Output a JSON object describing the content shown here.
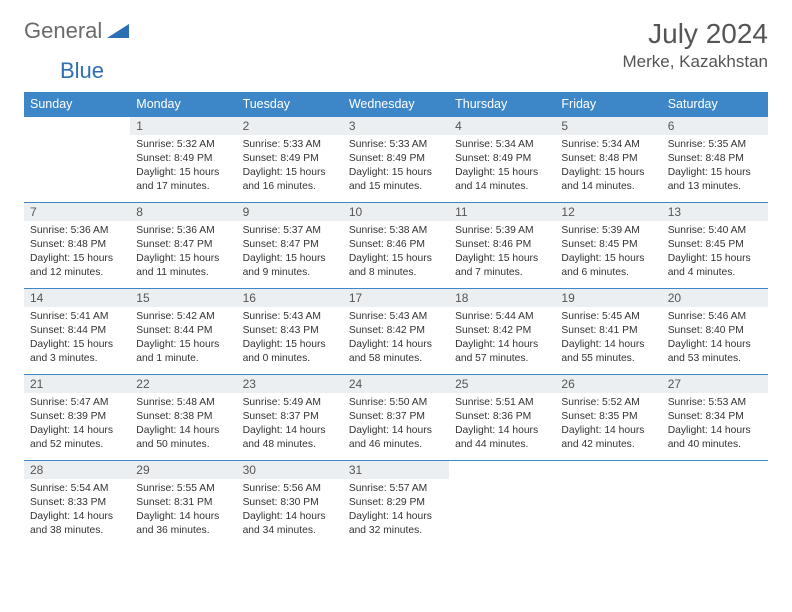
{
  "logo": {
    "text1": "General",
    "text2": "Blue"
  },
  "title": "July 2024",
  "location": "Merke, Kazakhstan",
  "colors": {
    "header_bg": "#3d87c9",
    "header_text": "#ffffff",
    "daynum_bg": "#eceff1",
    "border": "#3d87c9",
    "logo_gray": "#6a6a6a",
    "logo_blue": "#2d6fb4"
  },
  "weekdays": [
    "Sunday",
    "Monday",
    "Tuesday",
    "Wednesday",
    "Thursday",
    "Friday",
    "Saturday"
  ],
  "weeks": [
    [
      null,
      {
        "n": "1",
        "sr": "Sunrise: 5:32 AM",
        "ss": "Sunset: 8:49 PM",
        "dl": "Daylight: 15 hours and 17 minutes."
      },
      {
        "n": "2",
        "sr": "Sunrise: 5:33 AM",
        "ss": "Sunset: 8:49 PM",
        "dl": "Daylight: 15 hours and 16 minutes."
      },
      {
        "n": "3",
        "sr": "Sunrise: 5:33 AM",
        "ss": "Sunset: 8:49 PM",
        "dl": "Daylight: 15 hours and 15 minutes."
      },
      {
        "n": "4",
        "sr": "Sunrise: 5:34 AM",
        "ss": "Sunset: 8:49 PM",
        "dl": "Daylight: 15 hours and 14 minutes."
      },
      {
        "n": "5",
        "sr": "Sunrise: 5:34 AM",
        "ss": "Sunset: 8:48 PM",
        "dl": "Daylight: 15 hours and 14 minutes."
      },
      {
        "n": "6",
        "sr": "Sunrise: 5:35 AM",
        "ss": "Sunset: 8:48 PM",
        "dl": "Daylight: 15 hours and 13 minutes."
      }
    ],
    [
      {
        "n": "7",
        "sr": "Sunrise: 5:36 AM",
        "ss": "Sunset: 8:48 PM",
        "dl": "Daylight: 15 hours and 12 minutes."
      },
      {
        "n": "8",
        "sr": "Sunrise: 5:36 AM",
        "ss": "Sunset: 8:47 PM",
        "dl": "Daylight: 15 hours and 11 minutes."
      },
      {
        "n": "9",
        "sr": "Sunrise: 5:37 AM",
        "ss": "Sunset: 8:47 PM",
        "dl": "Daylight: 15 hours and 9 minutes."
      },
      {
        "n": "10",
        "sr": "Sunrise: 5:38 AM",
        "ss": "Sunset: 8:46 PM",
        "dl": "Daylight: 15 hours and 8 minutes."
      },
      {
        "n": "11",
        "sr": "Sunrise: 5:39 AM",
        "ss": "Sunset: 8:46 PM",
        "dl": "Daylight: 15 hours and 7 minutes."
      },
      {
        "n": "12",
        "sr": "Sunrise: 5:39 AM",
        "ss": "Sunset: 8:45 PM",
        "dl": "Daylight: 15 hours and 6 minutes."
      },
      {
        "n": "13",
        "sr": "Sunrise: 5:40 AM",
        "ss": "Sunset: 8:45 PM",
        "dl": "Daylight: 15 hours and 4 minutes."
      }
    ],
    [
      {
        "n": "14",
        "sr": "Sunrise: 5:41 AM",
        "ss": "Sunset: 8:44 PM",
        "dl": "Daylight: 15 hours and 3 minutes."
      },
      {
        "n": "15",
        "sr": "Sunrise: 5:42 AM",
        "ss": "Sunset: 8:44 PM",
        "dl": "Daylight: 15 hours and 1 minute."
      },
      {
        "n": "16",
        "sr": "Sunrise: 5:43 AM",
        "ss": "Sunset: 8:43 PM",
        "dl": "Daylight: 15 hours and 0 minutes."
      },
      {
        "n": "17",
        "sr": "Sunrise: 5:43 AM",
        "ss": "Sunset: 8:42 PM",
        "dl": "Daylight: 14 hours and 58 minutes."
      },
      {
        "n": "18",
        "sr": "Sunrise: 5:44 AM",
        "ss": "Sunset: 8:42 PM",
        "dl": "Daylight: 14 hours and 57 minutes."
      },
      {
        "n": "19",
        "sr": "Sunrise: 5:45 AM",
        "ss": "Sunset: 8:41 PM",
        "dl": "Daylight: 14 hours and 55 minutes."
      },
      {
        "n": "20",
        "sr": "Sunrise: 5:46 AM",
        "ss": "Sunset: 8:40 PM",
        "dl": "Daylight: 14 hours and 53 minutes."
      }
    ],
    [
      {
        "n": "21",
        "sr": "Sunrise: 5:47 AM",
        "ss": "Sunset: 8:39 PM",
        "dl": "Daylight: 14 hours and 52 minutes."
      },
      {
        "n": "22",
        "sr": "Sunrise: 5:48 AM",
        "ss": "Sunset: 8:38 PM",
        "dl": "Daylight: 14 hours and 50 minutes."
      },
      {
        "n": "23",
        "sr": "Sunrise: 5:49 AM",
        "ss": "Sunset: 8:37 PM",
        "dl": "Daylight: 14 hours and 48 minutes."
      },
      {
        "n": "24",
        "sr": "Sunrise: 5:50 AM",
        "ss": "Sunset: 8:37 PM",
        "dl": "Daylight: 14 hours and 46 minutes."
      },
      {
        "n": "25",
        "sr": "Sunrise: 5:51 AM",
        "ss": "Sunset: 8:36 PM",
        "dl": "Daylight: 14 hours and 44 minutes."
      },
      {
        "n": "26",
        "sr": "Sunrise: 5:52 AM",
        "ss": "Sunset: 8:35 PM",
        "dl": "Daylight: 14 hours and 42 minutes."
      },
      {
        "n": "27",
        "sr": "Sunrise: 5:53 AM",
        "ss": "Sunset: 8:34 PM",
        "dl": "Daylight: 14 hours and 40 minutes."
      }
    ],
    [
      {
        "n": "28",
        "sr": "Sunrise: 5:54 AM",
        "ss": "Sunset: 8:33 PM",
        "dl": "Daylight: 14 hours and 38 minutes."
      },
      {
        "n": "29",
        "sr": "Sunrise: 5:55 AM",
        "ss": "Sunset: 8:31 PM",
        "dl": "Daylight: 14 hours and 36 minutes."
      },
      {
        "n": "30",
        "sr": "Sunrise: 5:56 AM",
        "ss": "Sunset: 8:30 PM",
        "dl": "Daylight: 14 hours and 34 minutes."
      },
      {
        "n": "31",
        "sr": "Sunrise: 5:57 AM",
        "ss": "Sunset: 8:29 PM",
        "dl": "Daylight: 14 hours and 32 minutes."
      },
      null,
      null,
      null
    ]
  ]
}
